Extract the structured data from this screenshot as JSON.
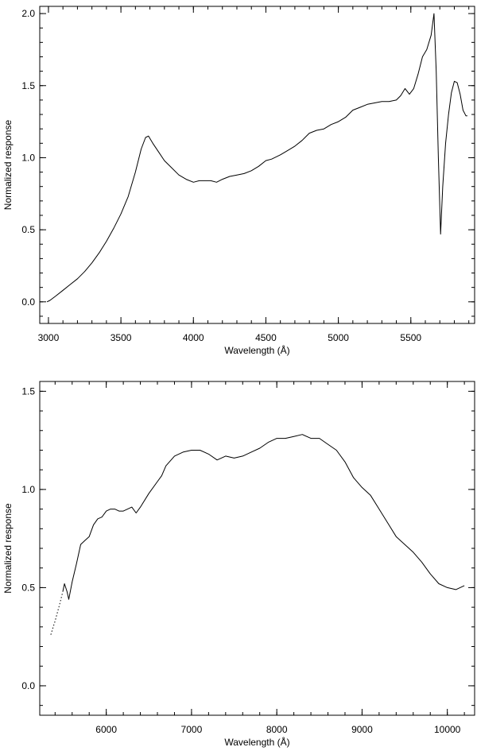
{
  "chart_data": [
    {
      "type": "line",
      "xlabel": "Wavelength (Å)",
      "ylabel": "Normalized response",
      "xlim": [
        2940,
        5940
      ],
      "ylim": [
        -0.15,
        2.05
      ],
      "xticks": [
        3000,
        3500,
        4000,
        4500,
        5000,
        5500
      ],
      "xtick_labels": [
        "3000",
        "3500",
        "4000",
        "4500",
        "5000",
        "5500"
      ],
      "yticks": [
        0.0,
        0.5,
        1.0,
        1.5,
        2.0
      ],
      "ytick_labels": [
        "0.0",
        "0.5",
        "1.0",
        "1.5",
        "2.0"
      ],
      "grid": false,
      "series": [
        {
          "style": "solid",
          "points": [
            [
              2990,
              0.0
            ],
            [
              3010,
              0.01
            ],
            [
              3050,
              0.04
            ],
            [
              3100,
              0.08
            ],
            [
              3150,
              0.12
            ],
            [
              3200,
              0.16
            ],
            [
              3250,
              0.21
            ],
            [
              3300,
              0.27
            ],
            [
              3350,
              0.34
            ],
            [
              3400,
              0.42
            ],
            [
              3450,
              0.51
            ],
            [
              3500,
              0.61
            ],
            [
              3550,
              0.73
            ],
            [
              3600,
              0.9
            ],
            [
              3640,
              1.06
            ],
            [
              3670,
              1.14
            ],
            [
              3690,
              1.15
            ],
            [
              3720,
              1.1
            ],
            [
              3760,
              1.04
            ],
            [
              3800,
              0.98
            ],
            [
              3850,
              0.93
            ],
            [
              3900,
              0.88
            ],
            [
              3950,
              0.85
            ],
            [
              4000,
              0.83
            ],
            [
              4040,
              0.84
            ],
            [
              4080,
              0.84
            ],
            [
              4120,
              0.84
            ],
            [
              4160,
              0.83
            ],
            [
              4200,
              0.85
            ],
            [
              4250,
              0.87
            ],
            [
              4300,
              0.88
            ],
            [
              4350,
              0.89
            ],
            [
              4400,
              0.91
            ],
            [
              4450,
              0.94
            ],
            [
              4500,
              0.98
            ],
            [
              4540,
              0.99
            ],
            [
              4600,
              1.02
            ],
            [
              4650,
              1.05
            ],
            [
              4700,
              1.08
            ],
            [
              4750,
              1.12
            ],
            [
              4800,
              1.17
            ],
            [
              4850,
              1.19
            ],
            [
              4900,
              1.2
            ],
            [
              4950,
              1.23
            ],
            [
              5000,
              1.25
            ],
            [
              5050,
              1.28
            ],
            [
              5100,
              1.33
            ],
            [
              5150,
              1.35
            ],
            [
              5200,
              1.37
            ],
            [
              5250,
              1.38
            ],
            [
              5300,
              1.39
            ],
            [
              5350,
              1.39
            ],
            [
              5400,
              1.4
            ],
            [
              5430,
              1.43
            ],
            [
              5460,
              1.48
            ],
            [
              5490,
              1.44
            ],
            [
              5520,
              1.48
            ],
            [
              5550,
              1.58
            ],
            [
              5580,
              1.7
            ],
            [
              5610,
              1.75
            ],
            [
              5640,
              1.85
            ],
            [
              5660,
              2.0
            ],
            [
              5675,
              1.6
            ],
            [
              5690,
              1.0
            ],
            [
              5705,
              0.47
            ],
            [
              5720,
              0.8
            ],
            [
              5740,
              1.1
            ],
            [
              5760,
              1.3
            ],
            [
              5780,
              1.45
            ],
            [
              5800,
              1.53
            ],
            [
              5820,
              1.52
            ],
            [
              5840,
              1.44
            ],
            [
              5860,
              1.33
            ],
            [
              5880,
              1.29
            ],
            [
              5890,
              1.29
            ]
          ]
        }
      ]
    },
    {
      "type": "line",
      "xlabel": "Wavelength (Å)",
      "ylabel": "Normalized response",
      "xlim": [
        5220,
        10320
      ],
      "ylim": [
        -0.15,
        1.55
      ],
      "xticks": [
        6000,
        7000,
        8000,
        9000,
        10000
      ],
      "xtick_labels": [
        "6000",
        "7000",
        "8000",
        "9000",
        "10000"
      ],
      "yticks": [
        0.0,
        0.5,
        1.0,
        1.5
      ],
      "ytick_labels": [
        "0.0",
        "0.5",
        "1.0",
        "1.5"
      ],
      "grid": false,
      "series": [
        {
          "style": "dotted",
          "points": [
            [
              5350,
              0.26
            ],
            [
              5400,
              0.33
            ],
            [
              5450,
              0.41
            ],
            [
              5490,
              0.48
            ]
          ]
        },
        {
          "style": "solid",
          "points": [
            [
              5490,
              0.48
            ],
            [
              5510,
              0.52
            ],
            [
              5540,
              0.48
            ],
            [
              5560,
              0.44
            ],
            [
              5600,
              0.53
            ],
            [
              5650,
              0.62
            ],
            [
              5700,
              0.72
            ],
            [
              5750,
              0.74
            ],
            [
              5800,
              0.76
            ],
            [
              5850,
              0.82
            ],
            [
              5900,
              0.85
            ],
            [
              5950,
              0.86
            ],
            [
              6000,
              0.89
            ],
            [
              6050,
              0.9
            ],
            [
              6100,
              0.9
            ],
            [
              6150,
              0.89
            ],
            [
              6200,
              0.89
            ],
            [
              6250,
              0.9
            ],
            [
              6300,
              0.91
            ],
            [
              6350,
              0.88
            ],
            [
              6400,
              0.91
            ],
            [
              6500,
              0.98
            ],
            [
              6600,
              1.04
            ],
            [
              6650,
              1.07
            ],
            [
              6700,
              1.12
            ],
            [
              6800,
              1.17
            ],
            [
              6900,
              1.19
            ],
            [
              7000,
              1.2
            ],
            [
              7100,
              1.2
            ],
            [
              7200,
              1.18
            ],
            [
              7300,
              1.15
            ],
            [
              7400,
              1.17
            ],
            [
              7500,
              1.16
            ],
            [
              7600,
              1.17
            ],
            [
              7700,
              1.19
            ],
            [
              7800,
              1.21
            ],
            [
              7900,
              1.24
            ],
            [
              8000,
              1.26
            ],
            [
              8100,
              1.26
            ],
            [
              8200,
              1.27
            ],
            [
              8300,
              1.28
            ],
            [
              8400,
              1.26
            ],
            [
              8500,
              1.26
            ],
            [
              8600,
              1.23
            ],
            [
              8700,
              1.2
            ],
            [
              8800,
              1.14
            ],
            [
              8900,
              1.06
            ],
            [
              9000,
              1.01
            ],
            [
              9100,
              0.97
            ],
            [
              9200,
              0.9
            ],
            [
              9300,
              0.83
            ],
            [
              9400,
              0.76
            ],
            [
              9500,
              0.72
            ],
            [
              9600,
              0.68
            ],
            [
              9700,
              0.63
            ],
            [
              9800,
              0.57
            ],
            [
              9900,
              0.52
            ],
            [
              10000,
              0.5
            ],
            [
              10100,
              0.49
            ],
            [
              10200,
              0.51
            ]
          ]
        }
      ]
    }
  ]
}
